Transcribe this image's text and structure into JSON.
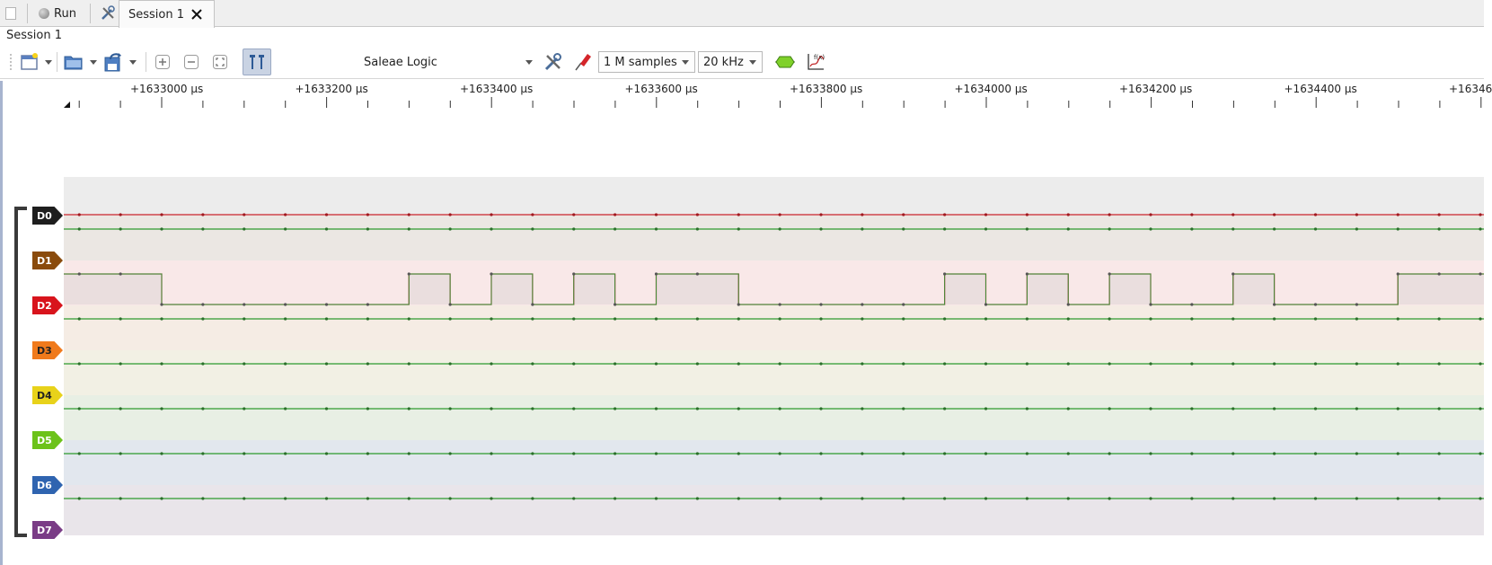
{
  "tabs": {
    "run_label": "Run",
    "session_tab_label": "Session 1"
  },
  "session_title": "Session 1",
  "toolbar": {
    "device": "Saleae Logic",
    "samples": "1 M samples",
    "rate": "20 kHz"
  },
  "ruler": {
    "labels": [
      "+1633000 µs",
      "+1633200 µs",
      "+1633400 µs",
      "+1633600 µs",
      "+1633800 µs",
      "+1634000 µs",
      "+1634200 µs",
      "+1634400 µs",
      "+16346"
    ]
  },
  "channels": [
    {
      "label": "D0",
      "color": "#1e1e1e"
    },
    {
      "label": "D1",
      "color": "#8a4b0c"
    },
    {
      "label": "D2",
      "color": "#d8141c"
    },
    {
      "label": "D3",
      "color": "#f07a1c"
    },
    {
      "label": "D4",
      "color": "#e8d21a"
    },
    {
      "label": "D5",
      "color": "#6cc21a"
    },
    {
      "label": "D6",
      "color": "#2f64b0"
    },
    {
      "label": "D7",
      "color": "#7a3c86"
    }
  ],
  "waveform": {
    "d2_edge_times_us": [
      1633000,
      1633300,
      1633350,
      1633400,
      1633450,
      1633500,
      1633550,
      1633600,
      1633700,
      1633950,
      1634000,
      1634050,
      1634100,
      1634150,
      1634200,
      1634300,
      1634350,
      1634500
    ],
    "d2_initial_level": "high"
  }
}
